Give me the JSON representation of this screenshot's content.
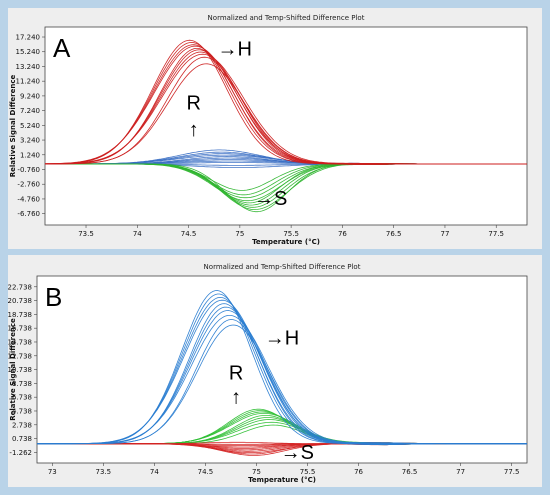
{
  "chart_data": [
    {
      "type": "line",
      "panel_label": "A",
      "title": "Normalized and Temp-Shifted Difference Plot",
      "xlabel": "Temperature (°C)",
      "ylabel": "Relative Signal Difference",
      "xlim": [
        73.1,
        77.8
      ],
      "ylim": [
        -8.3,
        18.6
      ],
      "xticks": [
        "73.5",
        "74",
        "74.5",
        "75",
        "75.5",
        "76",
        "76.5",
        "77",
        "77.5"
      ],
      "yticks": [
        "17.240",
        "15.240",
        "13.240",
        "11.240",
        "9.240",
        "7.240",
        "5.240",
        "3.240",
        "1.240",
        "-0.760",
        "-2.760",
        "-4.760",
        "-6.760"
      ],
      "annotations": [
        {
          "text": "→H",
          "at": [
            74.95,
            14.7
          ]
        },
        {
          "text": "R",
          "at": [
            74.55,
            7.4
          ]
        },
        {
          "text": "↑",
          "at": [
            74.55,
            3.8
          ]
        },
        {
          "text": "→S",
          "at": [
            75.3,
            -5.6
          ]
        }
      ],
      "series": [
        {
          "group": "H",
          "color": "#cc1f1f",
          "peak_x": 74.6,
          "peak_values": [
            16.8,
            16.5,
            16.2,
            16.0,
            15.7,
            15.5,
            15.2,
            14.9,
            14.5,
            13.6
          ],
          "width": 0.55
        },
        {
          "group": "R",
          "color": "#3a6fc4",
          "peak_x": 74.9,
          "peak_values": [
            1.9,
            1.6,
            1.4,
            1.2,
            1.0,
            0.8,
            0.6,
            0.4,
            0.2,
            -0.2,
            -0.5
          ],
          "width": 0.6
        },
        {
          "group": "S",
          "color": "#2fb52f",
          "peak_x": 75.1,
          "peak_values": [
            -3.6,
            -4.2,
            -4.6,
            -5.0,
            -5.3,
            -5.6,
            -5.9,
            -6.2,
            -6.5
          ],
          "width": 0.45
        }
      ]
    },
    {
      "type": "line",
      "panel_label": "B",
      "title": "Normalized and Temp-Shifted Difference Plot",
      "xlabel": "Temperature (°C)",
      "ylabel": "Relative Signal Difference",
      "xlim": [
        72.85,
        77.65
      ],
      "ylim": [
        -2.8,
        24.3
      ],
      "xticks": [
        "73",
        "73.5",
        "74",
        "74.5",
        "75",
        "75.5",
        "76",
        "76.5",
        "77",
        "77.5"
      ],
      "yticks": [
        "22.738",
        "20.738",
        "18.738",
        "16.738",
        "14.738",
        "12.738",
        "10.738",
        "8.738",
        "6.738",
        "4.738",
        "2.738",
        "0.738",
        "-1.262"
      ],
      "annotations": [
        {
          "text": "→H",
          "at": [
            75.25,
            14.4
          ]
        },
        {
          "text": "R",
          "at": [
            74.8,
            9.3
          ]
        },
        {
          "text": "↑",
          "at": [
            74.8,
            5.8
          ]
        },
        {
          "text": "→S",
          "at": [
            75.4,
            -2.2
          ]
        }
      ],
      "series": [
        {
          "group": "H",
          "color": "#2a7dd1",
          "peak_x": 74.7,
          "peak_values": [
            22.2,
            21.7,
            21.2,
            20.8,
            20.3,
            19.8,
            19.3,
            18.6,
            18.0,
            17.2
          ],
          "width": 0.52
        },
        {
          "group": "R",
          "color": "#2fbf35",
          "peak_x": 75.1,
          "peak_values": [
            5.0,
            4.8,
            4.6,
            4.4,
            4.1,
            3.8,
            3.5,
            3.1,
            2.7
          ],
          "width": 0.45
        },
        {
          "group": "S",
          "color": "#d42424",
          "peak_x": 74.9,
          "peak_values": [
            0.2,
            -0.1,
            -0.3,
            -0.5,
            -0.7,
            -0.9,
            -1.1,
            -1.3,
            -1.5,
            -1.7
          ],
          "width": 0.45
        }
      ]
    }
  ]
}
